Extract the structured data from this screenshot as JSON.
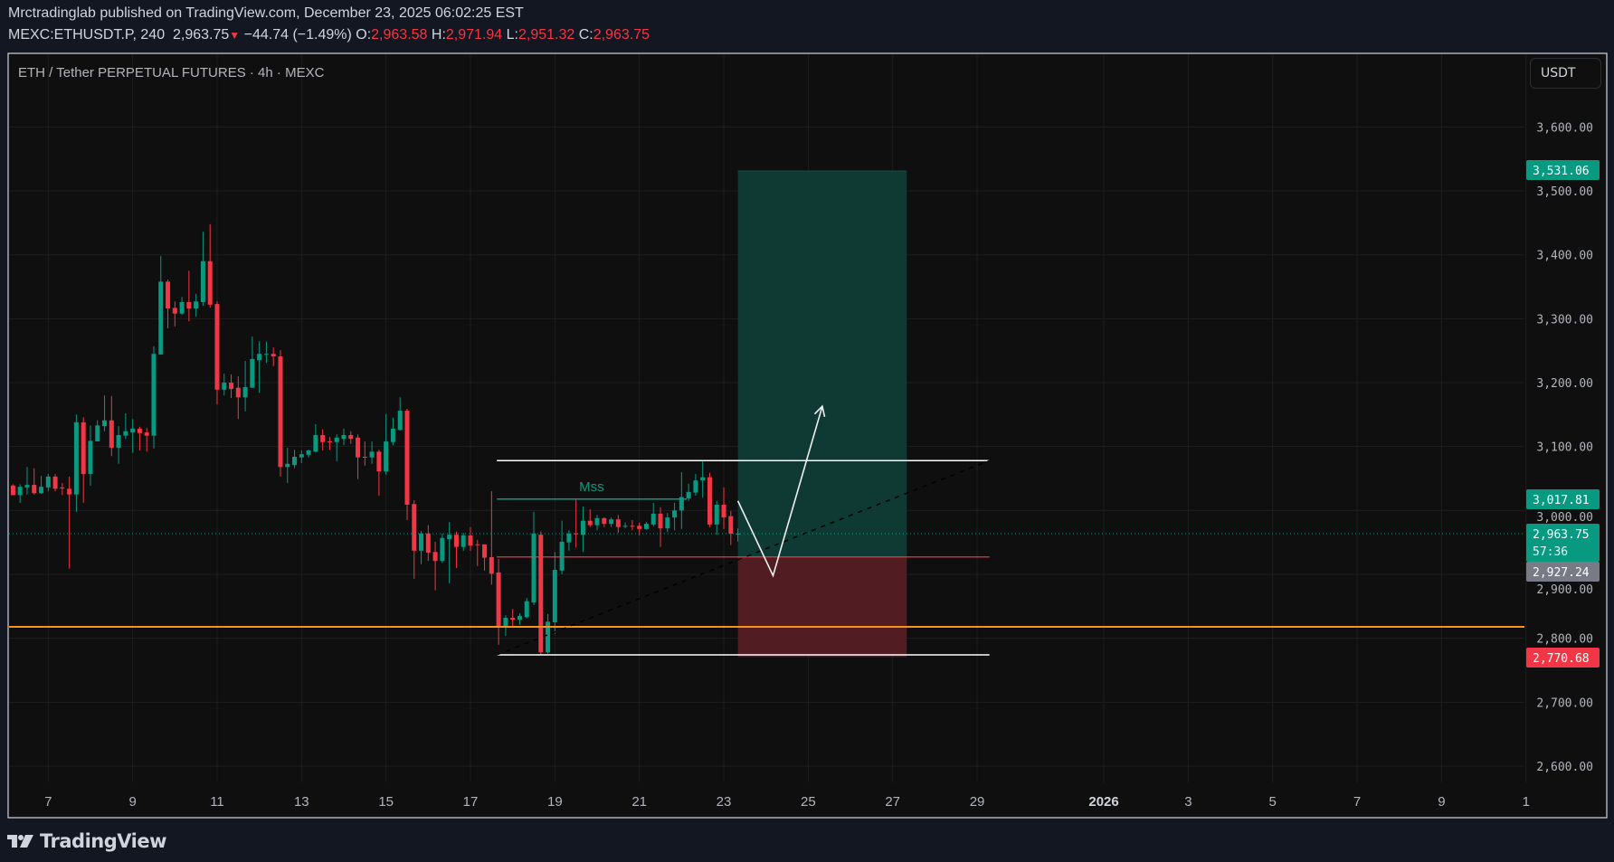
{
  "header": {
    "published": "Mrctradinglab published on TradingView.com, December 23, 2025 06:02:25 EST",
    "symbol": "MEXC:ETHUSDT.P, 240",
    "last": "2,963.75",
    "change": "−44.74 (−1.49%)",
    "o_label": "O:",
    "o": "2,963.58",
    "h_label": "H:",
    "h": "2,971.94",
    "l_label": "L:",
    "l": "2,951.32",
    "c_label": "C:",
    "c": "2,963.75"
  },
  "chart_title": "ETH / Tether PERPETUAL FUTURES · 4h · MEXC",
  "currency_button": "USDT",
  "logo": "TradingView",
  "colors": {
    "up": "#089981",
    "down": "#f23645",
    "support": "#f7931a",
    "background": "#0f0f0f",
    "page": "#131722"
  },
  "chart_data": {
    "type": "candlestick",
    "interval": "4h",
    "first_bar": "2025-12-06T04:00",
    "ohlc": [
      [
        3039,
        3041,
        3024,
        3024
      ],
      [
        3024,
        3041,
        3012,
        3037
      ],
      [
        3036,
        3068,
        3025,
        3040
      ],
      [
        3040,
        3066,
        3025,
        3027
      ],
      [
        3027,
        3054,
        3026,
        3037
      ],
      [
        3036,
        3057,
        3030,
        3053
      ],
      [
        3053,
        3057,
        3030,
        3034
      ],
      [
        3036,
        3043,
        3024,
        3035
      ],
      [
        3034,
        3053,
        2909,
        3025
      ],
      [
        3025,
        3150,
        2998,
        3138
      ],
      [
        3138,
        3146,
        3012,
        3057
      ],
      [
        3057,
        3133,
        3039,
        3109
      ],
      [
        3108,
        3141,
        3108,
        3133
      ],
      [
        3132,
        3180,
        3124,
        3141
      ],
      [
        3141,
        3179,
        3085,
        3098
      ],
      [
        3098,
        3132,
        3073,
        3118
      ],
      [
        3117,
        3152,
        3112,
        3124
      ],
      [
        3122,
        3143,
        3090,
        3128
      ],
      [
        3128,
        3131,
        3094,
        3121
      ],
      [
        3122,
        3129,
        3092,
        3117
      ],
      [
        3117,
        3257,
        3097,
        3245
      ],
      [
        3244,
        3398,
        3244,
        3358
      ],
      [
        3358,
        3361,
        3285,
        3316
      ],
      [
        3317,
        3327,
        3288,
        3308
      ],
      [
        3308,
        3334,
        3306,
        3326
      ],
      [
        3326,
        3375,
        3296,
        3316
      ],
      [
        3316,
        3339,
        3303,
        3327
      ],
      [
        3326,
        3436,
        3320,
        3390
      ],
      [
        3390,
        3448,
        3317,
        3322
      ],
      [
        3323,
        3327,
        3166,
        3189
      ],
      [
        3189,
        3214,
        3180,
        3200
      ],
      [
        3200,
        3213,
        3176,
        3190
      ],
      [
        3192,
        3210,
        3143,
        3177
      ],
      [
        3177,
        3234,
        3155,
        3193
      ],
      [
        3192,
        3272,
        3192,
        3237
      ],
      [
        3235,
        3265,
        3184,
        3245
      ],
      [
        3244,
        3264,
        3231,
        3245
      ],
      [
        3245,
        3255,
        3226,
        3241
      ],
      [
        3241,
        3251,
        3053,
        3068
      ],
      [
        3068,
        3098,
        3043,
        3073
      ],
      [
        3071,
        3095,
        3066,
        3084
      ],
      [
        3083,
        3094,
        3074,
        3088
      ],
      [
        3087,
        3095,
        3083,
        3094
      ],
      [
        3092,
        3135,
        3091,
        3118
      ],
      [
        3118,
        3127,
        3094,
        3107
      ],
      [
        3108,
        3115,
        3095,
        3107
      ],
      [
        3107,
        3119,
        3077,
        3114
      ],
      [
        3112,
        3128,
        3102,
        3118
      ],
      [
        3118,
        3124,
        3104,
        3112
      ],
      [
        3114,
        3119,
        3049,
        3083
      ],
      [
        3084,
        3108,
        3070,
        3083
      ],
      [
        3083,
        3108,
        3073,
        3092
      ],
      [
        3092,
        3095,
        3023,
        3061
      ],
      [
        3061,
        3151,
        3056,
        3108
      ],
      [
        3107,
        3145,
        3102,
        3128
      ],
      [
        3126,
        3177,
        3125,
        3156
      ],
      [
        3156,
        3159,
        2985,
        3009
      ],
      [
        3010,
        3016,
        2893,
        2937
      ],
      [
        2937,
        2968,
        2916,
        2964
      ],
      [
        2964,
        2977,
        2921,
        2934
      ],
      [
        2935,
        2951,
        2875,
        2921
      ],
      [
        2921,
        2964,
        2918,
        2957
      ],
      [
        2955,
        2982,
        2886,
        2962
      ],
      [
        2962,
        2967,
        2910,
        2943
      ],
      [
        2943,
        2965,
        2937,
        2961
      ],
      [
        2961,
        2974,
        2937,
        2945
      ],
      [
        2947,
        2954,
        2913,
        2946
      ],
      [
        2947,
        2947,
        2906,
        2926
      ],
      [
        2927,
        3030,
        2884,
        2901
      ],
      [
        2903,
        2924,
        2790,
        2818
      ],
      [
        2818,
        2836,
        2804,
        2832
      ],
      [
        2832,
        2846,
        2819,
        2829
      ],
      [
        2829,
        2839,
        2821,
        2835
      ],
      [
        2833,
        2863,
        2831,
        2858
      ],
      [
        2856,
        2998,
        2852,
        2964
      ],
      [
        2962,
        2967,
        2774,
        2778
      ],
      [
        2778,
        2838,
        2776,
        2826
      ],
      [
        2825,
        2935,
        2807,
        2907
      ],
      [
        2906,
        2984,
        2900,
        2951
      ],
      [
        2950,
        2969,
        2937,
        2964
      ],
      [
        2964,
        3017,
        2942,
        2963
      ],
      [
        2962,
        3006,
        2935,
        2984
      ],
      [
        2984,
        3002,
        2974,
        2977
      ],
      [
        2977,
        2993,
        2969,
        2988
      ],
      [
        2988,
        2989,
        2974,
        2979
      ],
      [
        2979,
        2989,
        2974,
        2986
      ],
      [
        2986,
        2993,
        2965,
        2974
      ],
      [
        2976,
        2981,
        2972,
        2976
      ],
      [
        2976,
        2985,
        2969,
        2975
      ],
      [
        2976,
        2981,
        2961,
        2971
      ],
      [
        2971,
        2982,
        2970,
        2979
      ],
      [
        2978,
        3012,
        2975,
        2995
      ],
      [
        2995,
        3005,
        2943,
        2972
      ],
      [
        2972,
        2996,
        2966,
        2989
      ],
      [
        2989,
        3012,
        2969,
        3000
      ],
      [
        3000,
        3060,
        2971,
        3021
      ],
      [
        3019,
        3042,
        3015,
        3029
      ],
      [
        3028,
        3057,
        3023,
        3047
      ],
      [
        3047,
        3077,
        3020,
        3052
      ],
      [
        3052,
        3059,
        2974,
        2978
      ],
      [
        2978,
        3015,
        2962,
        3009
      ],
      [
        3009,
        3036,
        2971,
        2989
      ],
      [
        2991,
        2999,
        2946,
        2963.58
      ],
      [
        2963.58,
        2971.94,
        2951.32,
        2963.75
      ]
    ],
    "y_ticks": [
      {
        "value": 3600,
        "label": "3,600.00"
      },
      {
        "value": 3500,
        "label": "3,500.00"
      },
      {
        "value": 3400,
        "label": "3,400.00"
      },
      {
        "value": 3300,
        "label": "3,300.00"
      },
      {
        "value": 3200,
        "label": "3,200.00"
      },
      {
        "value": 3100,
        "label": "3,100.00"
      },
      {
        "value": 3000,
        "label": "3,000.00"
      },
      {
        "value": 2900,
        "label": "2,900.00"
      },
      {
        "value": 2800,
        "label": "2,800.00"
      },
      {
        "value": 2700,
        "label": "2,700.00"
      },
      {
        "value": 2600,
        "label": "2,600.00"
      }
    ],
    "x_ticks": [
      {
        "date": "2025-12-07",
        "label": "7"
      },
      {
        "date": "2025-12-09",
        "label": "9"
      },
      {
        "date": "2025-12-11",
        "label": "11"
      },
      {
        "date": "2025-12-13",
        "label": "13"
      },
      {
        "date": "2025-12-15",
        "label": "15"
      },
      {
        "date": "2025-12-17",
        "label": "17"
      },
      {
        "date": "2025-12-19",
        "label": "19"
      },
      {
        "date": "2025-12-21",
        "label": "21"
      },
      {
        "date": "2025-12-23",
        "label": "23"
      },
      {
        "date": "2025-12-25",
        "label": "25"
      },
      {
        "date": "2025-12-27",
        "label": "27"
      },
      {
        "date": "2025-12-29",
        "label": "29"
      },
      {
        "date": "2026-01-01",
        "label": "2026",
        "bold": true
      },
      {
        "date": "2026-01-03",
        "label": "3"
      },
      {
        "date": "2026-01-05",
        "label": "5"
      },
      {
        "date": "2026-01-07",
        "label": "7"
      },
      {
        "date": "2026-01-09",
        "label": "9"
      },
      {
        "date": "2026-01-11",
        "label": "1"
      }
    ],
    "grid": true,
    "last_price": 2963.75,
    "price_tags": [
      {
        "label": "3,531.06",
        "value": 3531.06,
        "color": "#089981"
      },
      {
        "label": "3,017.81",
        "value": 3017.81,
        "color": "#089981"
      },
      {
        "label": "2,963.75",
        "sub": "57:36",
        "value": 2963.75,
        "color": "#089981"
      },
      {
        "label": "2,927.24",
        "value": 2927.24,
        "color": "#787b86"
      },
      {
        "label": "2,770.68",
        "value": 2770.68,
        "color": "#f23645"
      }
    ],
    "drawings": {
      "long_position": {
        "entry": 2927.24,
        "target": 3531.06,
        "stop": 2770.68,
        "from": "2025-12-23T08:00",
        "to": "2025-12-27T08:00"
      },
      "range_high": {
        "price": 3078,
        "from": "2025-12-17T15:00",
        "to": "2025-12-29T07:00"
      },
      "range_low": {
        "price": 2774,
        "from": "2025-12-17T15:00",
        "to": "2025-12-29T07:00"
      },
      "mss_line": {
        "price": 3017.81,
        "from": "2025-12-17T15:00",
        "to": "2025-12-22T03:00",
        "label": "Mss"
      },
      "entry_line": {
        "price": 2927.24,
        "from": "2025-12-17T15:00",
        "to": "2025-12-29T07:00"
      },
      "support_line": {
        "price": 2818
      },
      "trendline": {
        "from": [
          "2025-12-17T15:00",
          2774
        ],
        "to": [
          "2025-12-29T07:00",
          3078
        ]
      },
      "projection_path": [
        [
          "2025-12-23T08:00",
          3015
        ],
        [
          "2025-12-24T04:00",
          2898
        ],
        [
          "2025-12-25T08:00",
          3163
        ]
      ]
    }
  }
}
